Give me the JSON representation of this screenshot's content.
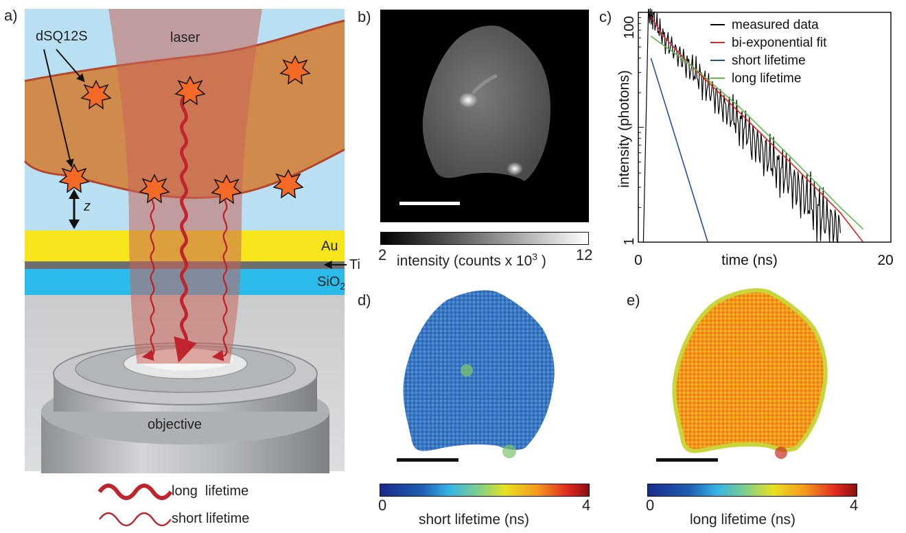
{
  "panels": {
    "a": "a)",
    "b": "b)",
    "c": "c)",
    "d": "d)",
    "e": "e)"
  },
  "schematic": {
    "dye_label": "dSQ12S",
    "laser_label": "laser",
    "z_label": "z",
    "au_label": "Au",
    "ti_label": "Ti",
    "sio2_label": "SiO",
    "sio2_sub": "2",
    "objective_label": "objective",
    "legend_long": "long  lifetime",
    "legend_short": "short lifetime",
    "colors": {
      "medium": "#b9dff2",
      "membrane": "#cf8a4c",
      "au": "#f5e51a",
      "ti": "#6e6e6e",
      "sio2": "#2bbbea",
      "glass": "#d0d2d4",
      "laser": "#c8655a",
      "arrow": "#c0242c",
      "star": "#f26a26"
    }
  },
  "intensity_colorbar": {
    "min": "2",
    "max": "12",
    "label": "intensity (counts x 10",
    "label_exp": "3",
    "label_end": " )"
  },
  "short_colorbar": {
    "min": "0",
    "max": "4",
    "label": "short lifetime (ns)"
  },
  "long_colorbar": {
    "min": "0",
    "max": "4",
    "label": "long lifetime (ns)"
  },
  "chart_data": {
    "type": "line",
    "xlabel": "time (ns)",
    "ylabel": "intensity (photons)",
    "x_ticks": [
      "0",
      "time (ns)",
      "20"
    ],
    "y_ticks": [
      "100",
      "1"
    ],
    "xlim": [
      0,
      20
    ],
    "ylim": [
      1,
      100
    ],
    "y_scale": "log",
    "legend_position": "top-right",
    "series": [
      {
        "name": "measured data",
        "color": "#000000",
        "x": [
          0.4,
          0.8,
          1.2,
          2,
          3,
          4,
          5,
          6,
          7,
          8,
          9,
          10,
          11,
          12,
          13,
          14,
          15,
          16
        ],
        "values": [
          1,
          95,
          88,
          60,
          45,
          34,
          26,
          19,
          14,
          11,
          8,
          6,
          4.5,
          3.5,
          2.6,
          2,
          1.5,
          1.2
        ]
      },
      {
        "name": "bi-exponential fit",
        "color": "#e8201e",
        "x": [
          1,
          2,
          4,
          6,
          8,
          10,
          12,
          14,
          16,
          17.8
        ],
        "values": [
          92,
          62,
          36,
          22,
          13.5,
          8.2,
          5,
          3,
          1.8,
          1
        ]
      },
      {
        "name": "short lifetime",
        "color": "#1f4fa8",
        "x": [
          1,
          5.5
        ],
        "values": [
          40,
          1
        ]
      },
      {
        "name": "long lifetime",
        "color": "#5fb84a",
        "x": [
          1,
          4,
          8,
          12,
          16,
          17.8
        ],
        "values": [
          62,
          36,
          15,
          5.6,
          2,
          1.3
        ]
      }
    ]
  }
}
